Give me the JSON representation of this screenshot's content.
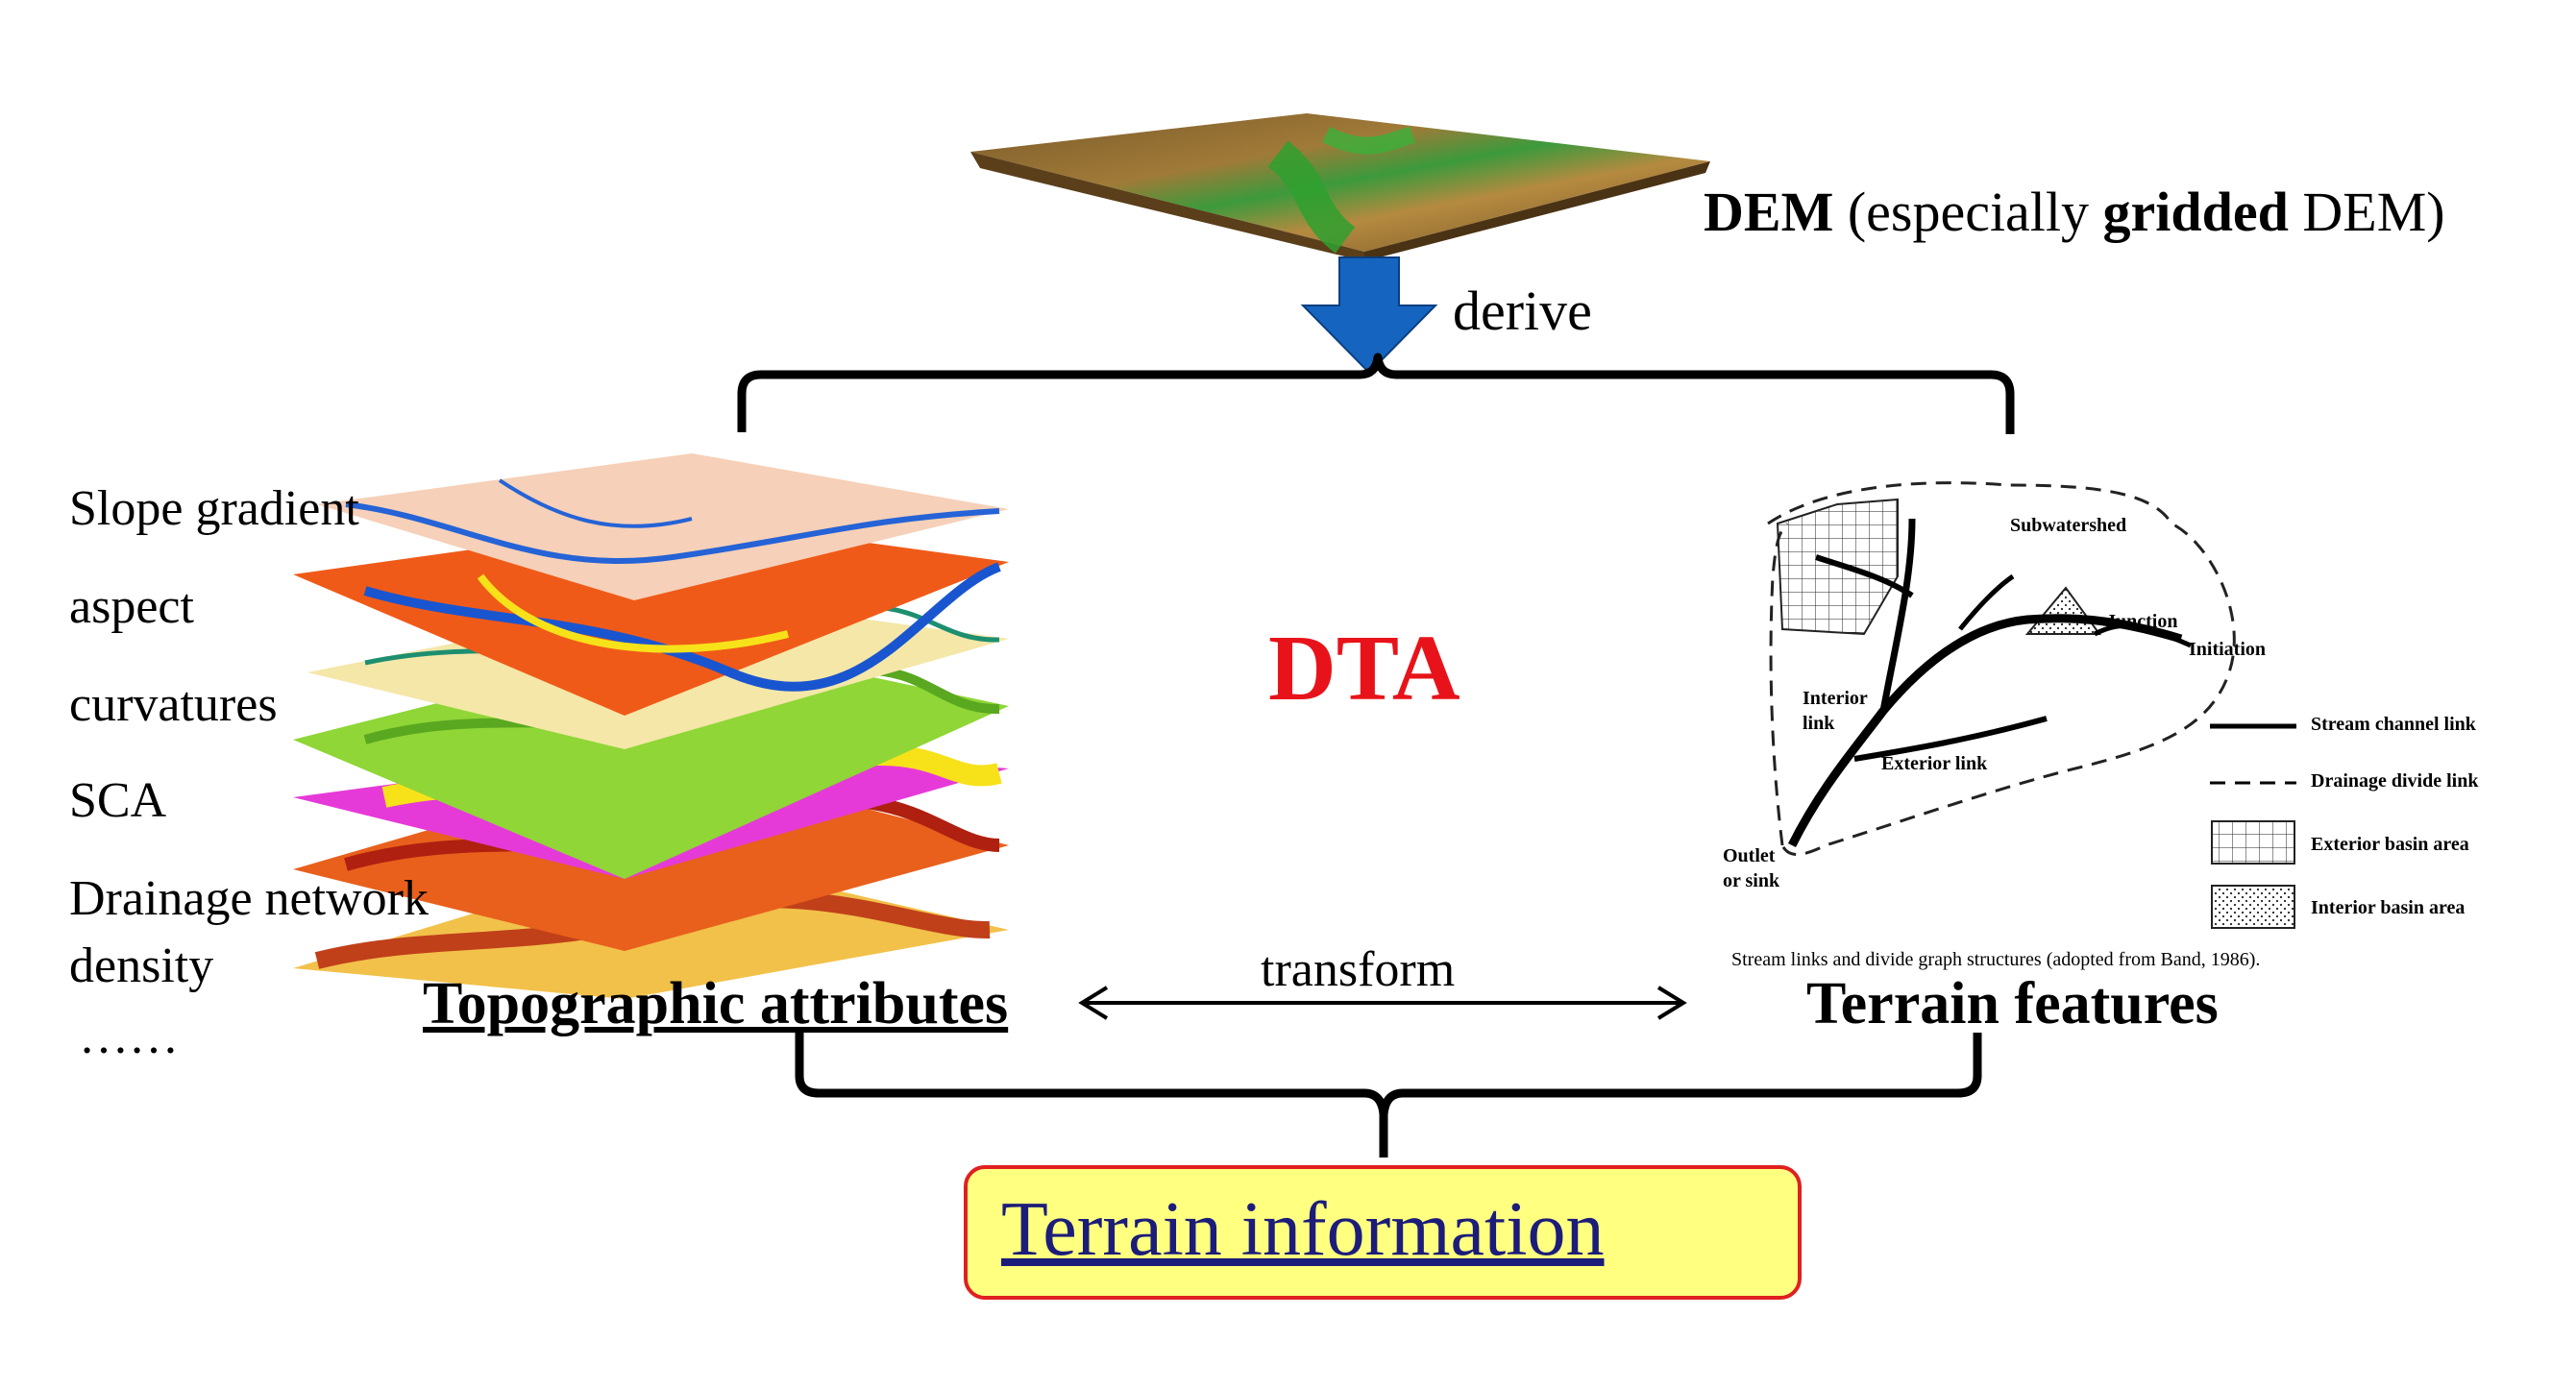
{
  "dem": {
    "part1": "DEM",
    "part2": " (especially ",
    "part3": "gridded",
    "part4": " DEM)"
  },
  "derive_label": "derive",
  "center_title": "DTA",
  "attribute_list": [
    "Slope gradient",
    "aspect",
    "curvatures",
    "SCA",
    "Drainage network",
    "density",
    "……"
  ],
  "topographic_label": "Topographic attributes",
  "transform_label": "transform",
  "terrain_features_label": "Terrain features",
  "terrain_info_label": "Terrain information",
  "band_diagram": {
    "subwatershed": "Subwatershed",
    "junction": "Junction",
    "initiation": "Initiation",
    "interior_link_1": "Interior",
    "interior_link_2": "link",
    "exterior_link": "Exterior link",
    "outlet_1": "Outlet",
    "outlet_2": "or sink",
    "legend": [
      "Stream channel link",
      "Drainage divide link",
      "Exterior basin area",
      "Interior basin area"
    ],
    "caption": "Stream links and divide graph structures (adopted from Band, 1986)."
  },
  "colors": {
    "dta_red": "#e8131a",
    "arrow_blue": "#1565c0",
    "info_box_fill": "#ffff80",
    "info_box_border": "#e02020",
    "info_text": "#1c1c7a"
  }
}
